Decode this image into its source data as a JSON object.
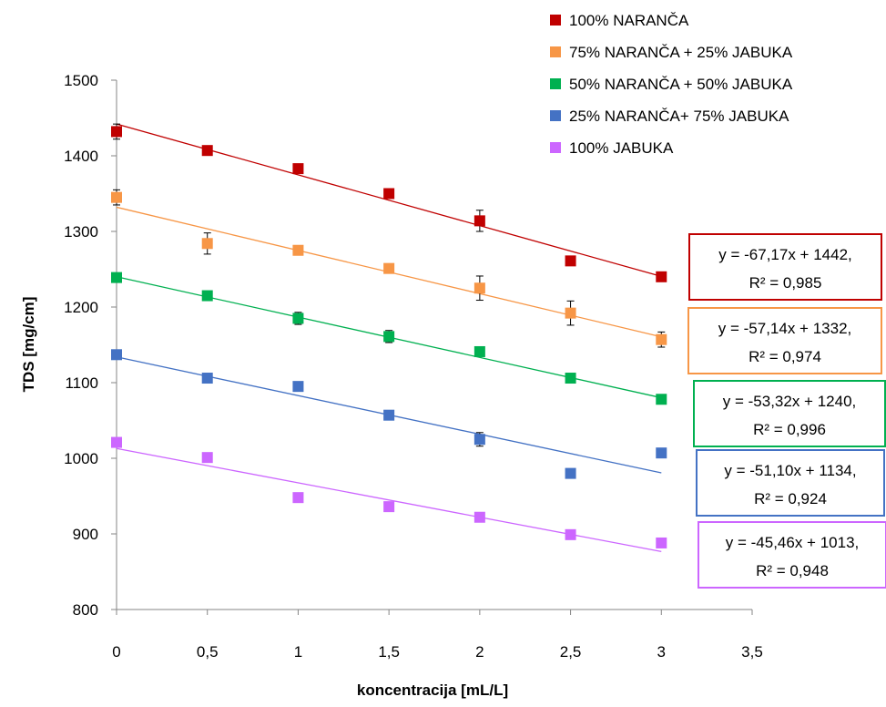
{
  "chart_data": {
    "type": "scatter",
    "xlabel": "koncentracija [mL/L]",
    "ylabel": "TDS [mg/cm]",
    "xlim": [
      0,
      3.5
    ],
    "ylim": [
      800,
      1500
    ],
    "x_ticks": [
      0,
      0.5,
      1,
      1.5,
      2,
      2.5,
      3,
      3.5
    ],
    "x_tick_labels": [
      "0",
      "0,5",
      "1",
      "1,5",
      "2",
      "2,5",
      "3",
      "3,5"
    ],
    "y_ticks": [
      800,
      900,
      1000,
      1100,
      1200,
      1300,
      1400,
      1500
    ],
    "y_tick_labels": [
      "800",
      "900",
      "1000",
      "1100",
      "1200",
      "1300",
      "1400",
      "1500"
    ],
    "grid": false,
    "legend_position": "top-right",
    "x": [
      0,
      0.5,
      1,
      1.5,
      2,
      2.5,
      3
    ],
    "series": [
      {
        "name": "100% NARANČA",
        "color": "#c00000",
        "values": [
          1432,
          1407,
          1383,
          1350,
          1314,
          1261,
          1240
        ],
        "errors": [
          10,
          5,
          5,
          5,
          14,
          4,
          4
        ],
        "trend": {
          "slope": -67.17,
          "intercept": 1442
        },
        "equation_line1": "y = -67,17x + 1442,",
        "equation_line2": "R² = 0,985"
      },
      {
        "name": "75% NARANČA + 25% JABUKA",
        "color": "#f79646",
        "values": [
          1345,
          1284,
          1275,
          1251,
          1225,
          1192,
          1157
        ],
        "errors": [
          10,
          14,
          4,
          4,
          16,
          16,
          10
        ],
        "trend": {
          "slope": -57.14,
          "intercept": 1332
        },
        "equation_line1": "y = -57,14x + 1332,",
        "equation_line2": "R² = 0,974"
      },
      {
        "name": "50% NARANČA + 50% JABUKA",
        "color": "#00b050",
        "values": [
          1239,
          1215,
          1185,
          1161,
          1141,
          1106,
          1078
        ],
        "errors": [
          4,
          4,
          8,
          8,
          5,
          6,
          4
        ],
        "trend": {
          "slope": -53.32,
          "intercept": 1240
        },
        "equation_line1": "y = -53,32x + 1240,",
        "equation_line2": "R² = 0,996"
      },
      {
        "name": "25% NARANČA+ 75% JABUKA",
        "color": "#4472c4",
        "values": [
          1137,
          1106,
          1095,
          1057,
          1025,
          980,
          1007
        ],
        "errors": [
          4,
          4,
          4,
          4,
          9,
          4,
          4
        ],
        "trend": {
          "slope": -51.1,
          "intercept": 1134
        },
        "equation_line1": "y = -51,10x + 1134,",
        "equation_line2": "R² = 0,924"
      },
      {
        "name": "100% JABUKA",
        "color": "#cc66ff",
        "values": [
          1021,
          1001,
          948,
          936,
          922,
          899,
          888
        ],
        "errors": [
          4,
          6,
          4,
          6,
          4,
          4,
          4
        ],
        "trend": {
          "slope": -45.46,
          "intercept": 1013
        },
        "equation_line1": "y = -45,46x + 1013,",
        "equation_line2": "R² = 0,948"
      }
    ]
  }
}
